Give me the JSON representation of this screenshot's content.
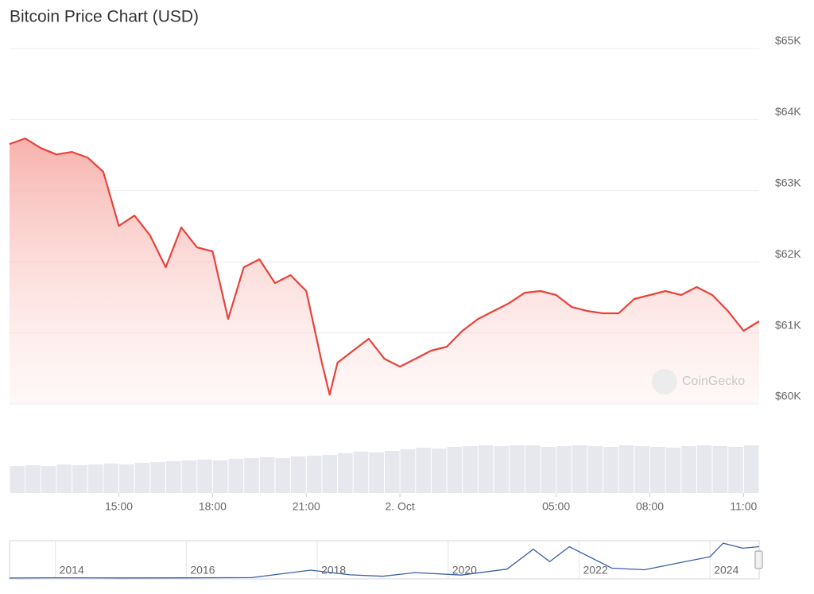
{
  "chart_data": [
    {
      "type": "area",
      "title": "Bitcoin Price Chart (USD)",
      "watermark": "CoinGecko",
      "color": "#e8423a",
      "grid": true,
      "x": [
        11.5,
        12,
        12.5,
        13,
        13.5,
        14,
        14.5,
        15,
        15.5,
        16,
        16.5,
        17,
        17.5,
        18,
        18.5,
        19,
        19.5,
        20,
        20.5,
        21,
        21.5,
        21.75,
        22,
        22.5,
        23,
        23.5,
        24,
        24.5,
        25,
        25.5,
        26,
        26.5,
        27,
        27.5,
        28,
        28.5,
        29,
        29.5,
        30,
        30.5,
        31,
        31.5,
        32,
        32.5,
        33,
        33.5,
        34,
        34.5,
        35,
        35.5
      ],
      "values": [
        63657,
        63735,
        63600,
        63510,
        63545,
        63467,
        63266,
        62505,
        62650,
        62370,
        61923,
        62483,
        62203,
        62147,
        61196,
        61923,
        62035,
        61700,
        61812,
        61588,
        60581,
        60130,
        60581,
        60749,
        60917,
        60637,
        60525,
        60637,
        60749,
        60805,
        61029,
        61196,
        61308,
        61420,
        61565,
        61588,
        61532,
        61364,
        61308,
        61275,
        61275,
        61476,
        61532,
        61588,
        61532,
        61644,
        61532,
        61308,
        61029,
        61163
      ],
      "xlim": [
        11.5,
        35.5
      ],
      "xticks": [
        {
          "value": 15,
          "label": "15:00"
        },
        {
          "value": 18,
          "label": "18:00"
        },
        {
          "value": 21,
          "label": "21:00"
        },
        {
          "value": 24,
          "label": "2. Oct"
        },
        {
          "value": 29,
          "label": "05:00"
        },
        {
          "value": 32,
          "label": "08:00"
        },
        {
          "value": 35,
          "label": "11:00"
        }
      ],
      "ylim": [
        60000,
        65000
      ],
      "yticks": [
        {
          "value": 60000,
          "label": "$60K"
        },
        {
          "value": 61000,
          "label": "$61K"
        },
        {
          "value": 62000,
          "label": "$62K"
        },
        {
          "value": 63000,
          "label": "$63K"
        },
        {
          "value": 64000,
          "label": "$64K"
        },
        {
          "value": 65000,
          "label": "$65K"
        }
      ]
    },
    {
      "type": "bar",
      "color": "#e6e8ee",
      "ylim": [
        0,
        70
      ],
      "values": [
        34,
        35,
        34,
        36,
        35,
        36,
        37,
        36,
        38,
        39,
        40,
        41,
        42,
        41,
        43,
        44,
        45,
        44,
        46,
        47,
        48,
        50,
        52,
        51,
        53,
        55,
        57,
        56,
        58,
        59,
        60,
        59,
        60,
        60,
        58,
        59,
        60,
        59,
        58,
        60,
        59,
        58,
        57,
        59,
        60,
        59,
        58,
        60
      ]
    },
    {
      "type": "line",
      "color": "#3a5ea8",
      "x": [
        2013.3,
        2014,
        2015,
        2016,
        2017,
        2017.9,
        2018.5,
        2019,
        2019.5,
        2020.2,
        2020.9,
        2021.3,
        2021.55,
        2021.85,
        2022.5,
        2023,
        2023.5,
        2024,
        2024.2,
        2024.5,
        2024.75
      ],
      "values": [
        100,
        600,
        250,
        430,
        1000,
        16000,
        6500,
        3700,
        11000,
        6000,
        18000,
        58000,
        33000,
        63000,
        20000,
        16800,
        30000,
        43000,
        70000,
        60000,
        63000
      ],
      "xlim": [
        2013.3,
        2024.75
      ],
      "ylim": [
        0,
        75000
      ],
      "xticks": [
        2014,
        2016,
        2018,
        2020,
        2022,
        2024
      ]
    }
  ]
}
